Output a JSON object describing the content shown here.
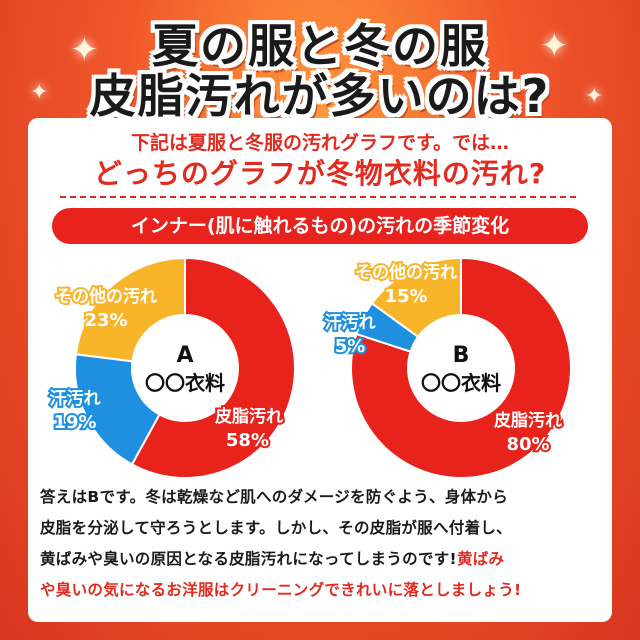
{
  "title": {
    "line1": "夏の服と冬の服",
    "line2": "皮脂汚れが多いのは?"
  },
  "subtitle": {
    "line1": "下記は夏服と冬服の汚れグラフです。では…",
    "line2": "どっちのグラフが冬物衣料の汚れ?"
  },
  "banner": "インナー(肌に触れるもの)の汚れの季節変化",
  "chart_data": [
    {
      "type": "pie",
      "center_label": {
        "letter": "A",
        "name": "〇〇衣料"
      },
      "slices": [
        {
          "name": "皮脂汚れ",
          "value": 58,
          "label": "58%",
          "color": "#e8231c"
        },
        {
          "name": "汗汚れ",
          "value": 19,
          "label": "19%",
          "color": "#1f8fe0"
        },
        {
          "name": "その他の汚れ",
          "value": 23,
          "label": "23%",
          "color": "#f8b52a"
        }
      ]
    },
    {
      "type": "pie",
      "center_label": {
        "letter": "B",
        "name": "〇〇衣料"
      },
      "slices": [
        {
          "name": "皮脂汚れ",
          "value": 80,
          "label": "80%",
          "color": "#e8231c"
        },
        {
          "name": "汗汚れ",
          "value": 5,
          "label": "5%",
          "color": "#1f8fe0"
        },
        {
          "name": "その他の汚れ",
          "value": 15,
          "label": "15%",
          "color": "#f8b52a"
        }
      ]
    }
  ],
  "answer": {
    "line1": "答えはBです。冬は乾燥など肌へのダメージを防ぐよう、身体から",
    "line2": "皮脂を分泌して守ろうとします。しかし、その皮脂が服へ付着し、",
    "line3": "黄ばみや臭いの原因となる皮脂汚れになってしまうのです!",
    "line3_highlight": "黄ばみ",
    "line4": "や臭いの気になるお洋服はクリーニングできれいに落としましょう!"
  }
}
